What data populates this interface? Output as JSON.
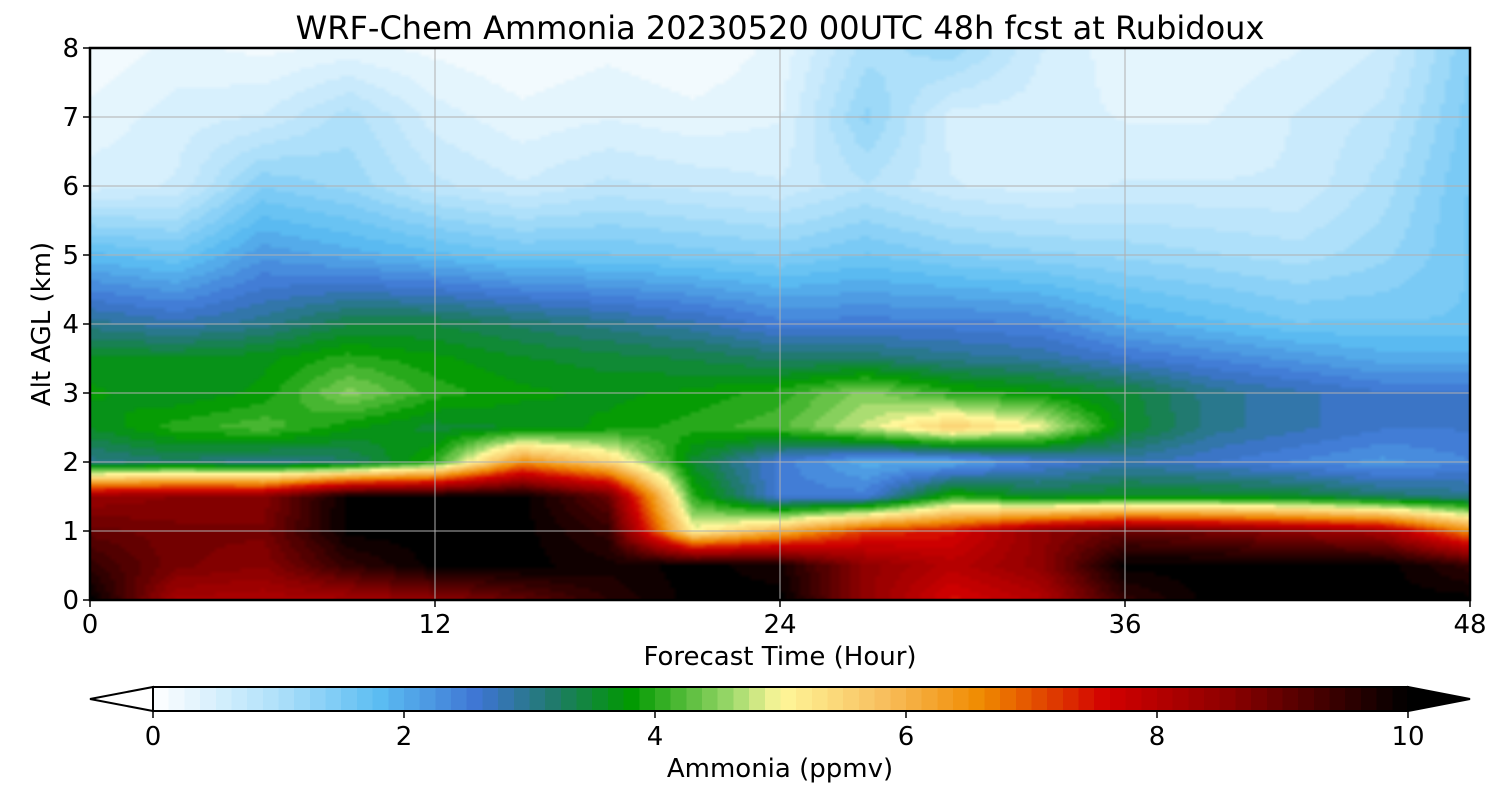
{
  "chart_data": {
    "type": "heatmap",
    "title": "WRF-Chem Ammonia  20230520 00UTC 48h fcst at Rubidoux",
    "xlabel": "Forecast Time (Hour)",
    "ylabel": "Alt AGL (km)",
    "xlim": [
      0,
      48
    ],
    "ylim": [
      0,
      8
    ],
    "xticks": [
      0,
      12,
      24,
      36,
      48
    ],
    "yticks": [
      0,
      1,
      2,
      3,
      4,
      5,
      6,
      7,
      8
    ],
    "grid": true,
    "x": [
      0,
      3,
      6,
      9,
      12,
      15,
      18,
      21,
      24,
      27,
      30,
      33,
      36,
      39,
      42,
      45,
      48
    ],
    "y": [
      0,
      0.5,
      1,
      1.5,
      2,
      2.5,
      3,
      3.5,
      4,
      5,
      6,
      7,
      8
    ],
    "z": [
      [
        10,
        8.2,
        8.1,
        8.2,
        8.5,
        9.0,
        9.6,
        10,
        10,
        8.5,
        7.5,
        8.0,
        9.5,
        10,
        10,
        10,
        10
      ],
      [
        9.5,
        8.8,
        8.6,
        9.5,
        10,
        10,
        9.8,
        10,
        9.8,
        8.5,
        8.0,
        8.5,
        10,
        10,
        10,
        10,
        9.5
      ],
      [
        9.0,
        8.8,
        8.8,
        10,
        10,
        10,
        9.5,
        5.0,
        6.0,
        7.2,
        7.5,
        8.5,
        9.0,
        8.8,
        8.5,
        8.2,
        6.5
      ],
      [
        8.4,
        8.6,
        8.6,
        10,
        10,
        10,
        9.0,
        4.0,
        2.5,
        2.5,
        4.0,
        3.5,
        3.6,
        3.6,
        3.5,
        3.2,
        3.0
      ],
      [
        3.0,
        3.2,
        3.0,
        3.2,
        4.0,
        6.5,
        5.5,
        3.5,
        2.5,
        2.0,
        2.0,
        2.5,
        2.8,
        2.6,
        2.4,
        2.2,
        2.4
      ],
      [
        3.6,
        4.0,
        4.2,
        3.8,
        3.5,
        3.6,
        3.8,
        4.0,
        4.2,
        4.8,
        5.6,
        5.0,
        3.6,
        3.0,
        2.8,
        2.6,
        2.6
      ],
      [
        3.8,
        3.6,
        3.8,
        4.5,
        4.0,
        3.8,
        3.7,
        3.8,
        4.0,
        4.5,
        4.0,
        3.8,
        3.5,
        3.0,
        2.8,
        2.6,
        2.6
      ],
      [
        3.6,
        3.6,
        3.7,
        4.0,
        3.8,
        3.6,
        3.5,
        3.4,
        3.2,
        3.2,
        3.0,
        2.9,
        2.6,
        2.4,
        2.2,
        2.0,
        2.0
      ],
      [
        3.0,
        2.8,
        3.0,
        3.4,
        3.4,
        3.2,
        3.0,
        2.8,
        2.5,
        2.5,
        2.5,
        2.4,
        2.0,
        1.8,
        1.6,
        1.6,
        1.6
      ],
      [
        1.8,
        1.6,
        2.2,
        2.0,
        1.8,
        1.6,
        1.6,
        1.5,
        1.4,
        1.6,
        1.4,
        1.3,
        1.2,
        1.1,
        1.0,
        1.2,
        1.6
      ],
      [
        0.5,
        0.6,
        1.4,
        1.2,
        0.8,
        0.6,
        0.8,
        0.7,
        0.6,
        0.9,
        0.6,
        0.5,
        0.6,
        0.6,
        0.6,
        1.0,
        1.6
      ],
      [
        0.3,
        0.5,
        0.6,
        1.0,
        0.5,
        0.3,
        0.4,
        0.3,
        0.4,
        1.3,
        0.5,
        0.5,
        0.4,
        0.4,
        0.6,
        0.8,
        1.5
      ],
      [
        0.1,
        0.3,
        0.2,
        0.3,
        0.2,
        0.1,
        0.2,
        0.1,
        0.3,
        1.0,
        1.2,
        0.6,
        0.3,
        0.3,
        0.4,
        0.6,
        1.4
      ]
    ],
    "colorbar": {
      "label": "Ammonia  (ppmv)",
      "min": 0,
      "max": 10,
      "ticks": [
        0,
        2,
        4,
        6,
        8,
        10
      ],
      "extend": "both",
      "orientation": "horizontal",
      "stops": [
        {
          "value": 0,
          "color": "#ffffff"
        },
        {
          "value": 1,
          "color": "#aee0fa"
        },
        {
          "value": 1.8,
          "color": "#5bbdf2"
        },
        {
          "value": 2.6,
          "color": "#3e74d2"
        },
        {
          "value": 3.2,
          "color": "#1f7a6a"
        },
        {
          "value": 3.8,
          "color": "#009900"
        },
        {
          "value": 4.6,
          "color": "#9ad86a"
        },
        {
          "value": 5.0,
          "color": "#fff79a"
        },
        {
          "value": 5.8,
          "color": "#f8c060"
        },
        {
          "value": 6.6,
          "color": "#f08a00"
        },
        {
          "value": 7.6,
          "color": "#d20000"
        },
        {
          "value": 8.6,
          "color": "#8a0000"
        },
        {
          "value": 10,
          "color": "#000000"
        }
      ]
    }
  }
}
